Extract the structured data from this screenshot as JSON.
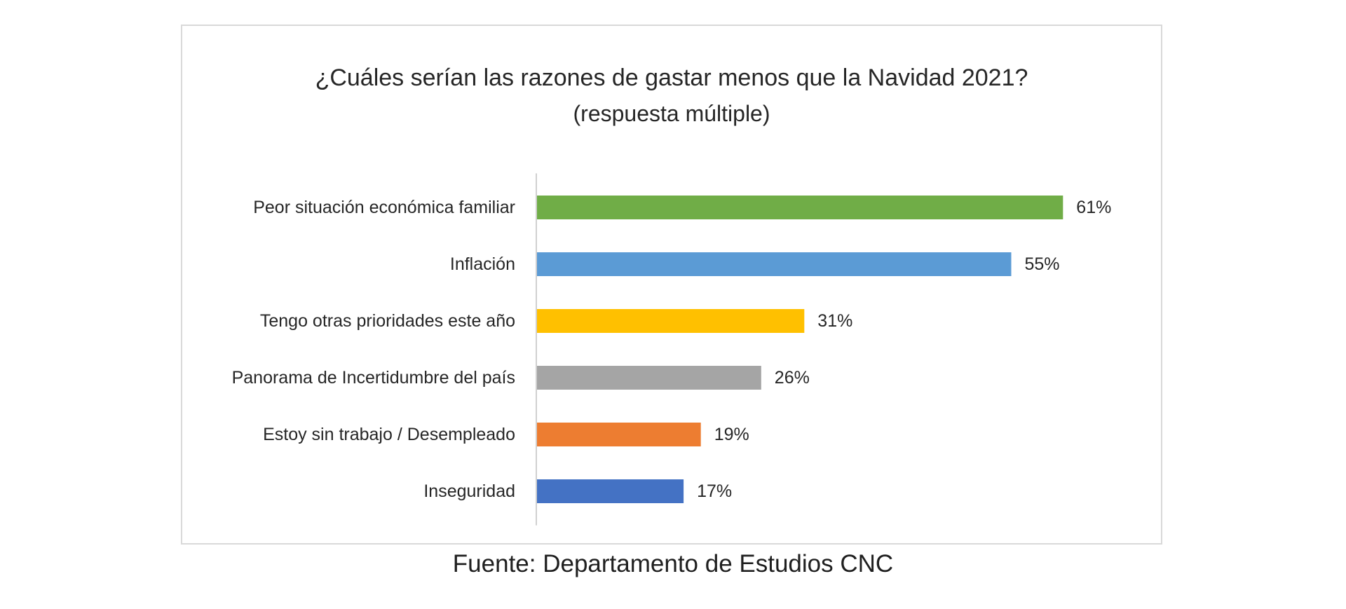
{
  "chart_data": {
    "type": "bar",
    "orientation": "horizontal",
    "title": "¿Cuáles serían las razones de gastar menos que la Navidad 2021?",
    "subtitle": "(respuesta múltiple)",
    "categories": [
      "Peor situación económica familiar",
      "Inflación",
      "Tengo otras prioridades este año",
      "Panorama de Incertidumbre del país",
      "Estoy sin trabajo / Desempleado",
      "Inseguridad"
    ],
    "values": [
      61,
      55,
      31,
      26,
      19,
      17
    ],
    "value_labels": [
      "61%",
      "55%",
      "31%",
      "26%",
      "19%",
      "17%"
    ],
    "colors": [
      "#70AD47",
      "#5B9BD5",
      "#FFC000",
      "#A5A5A5",
      "#ED7D31",
      "#4472C4"
    ],
    "xlim": [
      0,
      70
    ],
    "unit": "%",
    "grid": false,
    "legend": "none"
  },
  "source": "Fuente: Departamento de Estudios CNC"
}
